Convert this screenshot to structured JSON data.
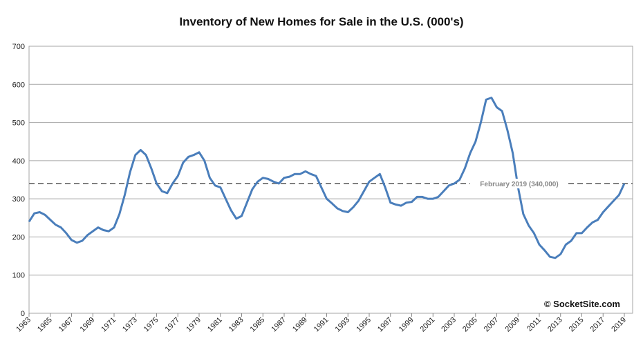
{
  "chart_data": {
    "type": "line",
    "title": "Inventory of New Homes for Sale in the U.S. (000's)",
    "x": [
      1963,
      1963.5,
      1964,
      1964.5,
      1965,
      1965.5,
      1966,
      1966.5,
      1967,
      1967.5,
      1968,
      1968.5,
      1969,
      1969.5,
      1970,
      1970.5,
      1971,
      1971.5,
      1972,
      1972.5,
      1973,
      1973.5,
      1974,
      1974.5,
      1975,
      1975.5,
      1976,
      1976.5,
      1977,
      1977.5,
      1978,
      1978.5,
      1979,
      1979.5,
      1980,
      1980.5,
      1981,
      1981.5,
      1982,
      1982.5,
      1983,
      1983.5,
      1984,
      1984.5,
      1985,
      1985.5,
      1986,
      1986.5,
      1987,
      1987.5,
      1988,
      1988.5,
      1989,
      1989.5,
      1990,
      1990.5,
      1991,
      1991.5,
      1992,
      1992.5,
      1993,
      1993.5,
      1994,
      1994.5,
      1995,
      1995.5,
      1996,
      1996.5,
      1997,
      1997.5,
      1998,
      1998.5,
      1999,
      1999.5,
      2000,
      2000.5,
      2001,
      2001.5,
      2002,
      2002.5,
      2003,
      2003.5,
      2004,
      2004.5,
      2005,
      2005.5,
      2006,
      2006.5,
      2007,
      2007.5,
      2008,
      2008.5,
      2009,
      2009.5,
      2010,
      2010.5,
      2011,
      2011.5,
      2012,
      2012.5,
      2013,
      2013.5,
      2014,
      2014.5,
      2015,
      2015.5,
      2016,
      2016.5,
      2017,
      2017.5,
      2018,
      2018.5,
      2019
    ],
    "series": [
      {
        "name": "Inventory",
        "color": "#4a7ebb",
        "values": [
          240,
          262,
          265,
          258,
          245,
          232,
          225,
          210,
          192,
          185,
          190,
          205,
          215,
          225,
          218,
          215,
          225,
          260,
          310,
          370,
          415,
          428,
          415,
          380,
          340,
          320,
          315,
          340,
          360,
          395,
          410,
          415,
          422,
          400,
          355,
          335,
          330,
          300,
          270,
          248,
          255,
          290,
          325,
          345,
          355,
          352,
          345,
          340,
          355,
          358,
          365,
          365,
          372,
          365,
          360,
          330,
          300,
          288,
          275,
          268,
          265,
          278,
          295,
          320,
          345,
          355,
          365,
          330,
          290,
          285,
          282,
          290,
          292,
          305,
          305,
          300,
          300,
          305,
          320,
          335,
          340,
          350,
          380,
          420,
          450,
          500,
          560,
          565,
          540,
          530,
          480,
          420,
          330,
          260,
          230,
          210,
          180,
          165,
          148,
          145,
          155,
          180,
          190,
          210,
          210,
          225,
          238,
          245,
          265,
          280,
          295,
          310,
          340
        ]
      }
    ],
    "xlim": [
      1963,
      2019
    ],
    "xticks": [
      1963,
      1965,
      1967,
      1969,
      1971,
      1973,
      1975,
      1977,
      1979,
      1981,
      1983,
      1985,
      1987,
      1989,
      1991,
      1993,
      1995,
      1997,
      1999,
      2001,
      2003,
      2005,
      2007,
      2009,
      2011,
      2013,
      2015,
      2017,
      2019
    ],
    "ylim": [
      0,
      700
    ],
    "yticks": [
      0,
      100,
      200,
      300,
      400,
      500,
      600,
      700
    ],
    "grid": true,
    "reference_line": {
      "value": 340,
      "label": "February 2019 (340,000)",
      "color": "#808080"
    },
    "watermark": "© SocketSite.com"
  }
}
